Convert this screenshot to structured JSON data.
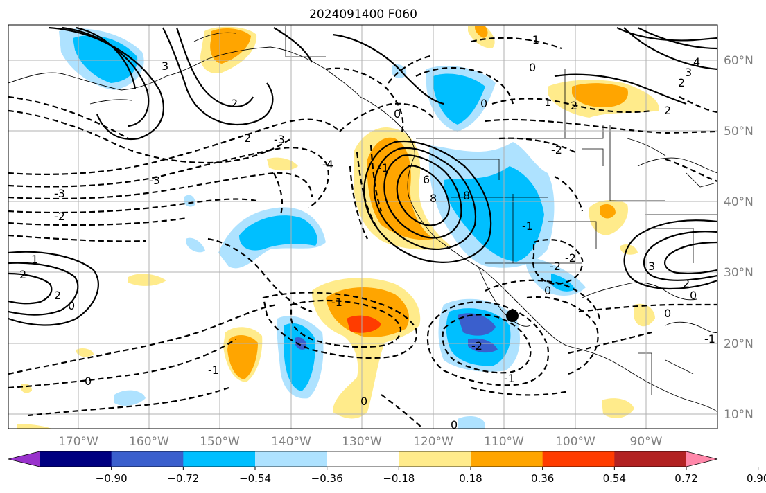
{
  "title": "2024091400 F060",
  "lon_labels": [
    "170°W",
    "160°W",
    "150°W",
    "140°W",
    "130°W",
    "120°W",
    "110°W",
    "100°W",
    "90°W"
  ],
  "lat_labels": [
    "60°N",
    "50°N",
    "40°N",
    "30°N",
    "20°N",
    "10°N"
  ],
  "colorbar": {
    "ticks": [
      "−0.90",
      "−0.72",
      "−0.54",
      "−0.36",
      "−0.18",
      "0.18",
      "0.36",
      "0.54",
      "0.72",
      "0.90"
    ],
    "colors": [
      "#9932cc",
      "#000080",
      "#3a5fcd",
      "#00bfff",
      "#aee2ff",
      "#ffffff",
      "#ffeb8b",
      "#ffa500",
      "#ff3c00",
      "#b22222",
      "#ff88aa"
    ]
  },
  "contour_labels": [
    "-1",
    "0",
    "1",
    "2",
    "3",
    "4",
    "-2",
    "-3",
    "-4",
    "6",
    "8"
  ],
  "marker": "filled-dot"
}
